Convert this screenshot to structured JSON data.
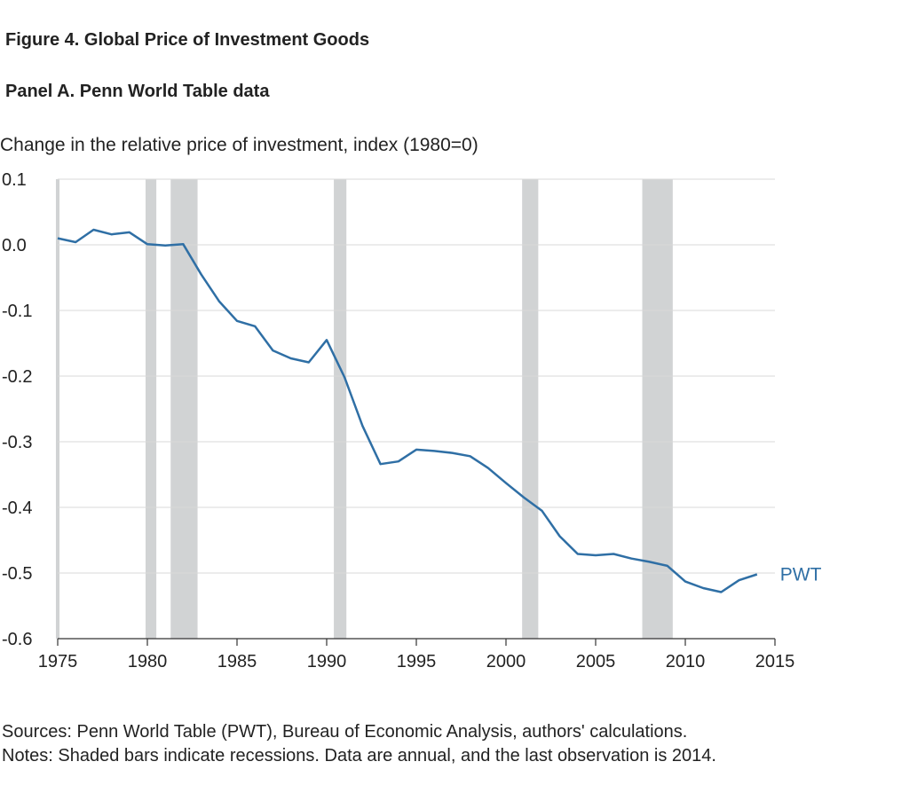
{
  "figure_title": "Figure 4. Global Price of Investment Goods",
  "panel_title": "Panel A. Penn World Table data",
  "notes": {
    "sources": "Sources: Penn World Table (PWT), Bureau of Economic Analysis, authors' calculations.",
    "notes": "Notes: Shaded bars indicate recessions. Data are annual, and the last observation is 2014."
  },
  "colors": {
    "line": "#2f6fa5",
    "recession": "#d1d3d4",
    "grid": "#d9d9d9",
    "axis": "#333333"
  },
  "chart_data": {
    "type": "line",
    "title": "Figure 4. Global Price of Investment Goods",
    "subtitle": "Panel A. Penn World Table data",
    "ylabel": "Change in the relative price of investment, index (1980=0)",
    "xlabel": "",
    "xlim": [
      1975,
      2015
    ],
    "ylim": [
      -0.6,
      0.1
    ],
    "xticks": [
      1975,
      1980,
      1985,
      1990,
      1995,
      2000,
      2005,
      2010,
      2015
    ],
    "yticks": [
      0.1,
      0.0,
      -0.1,
      -0.2,
      -0.3,
      -0.4,
      -0.5,
      -0.6
    ],
    "ytick_labels": [
      "0.1",
      "0.0",
      "-0.1",
      "-0.2",
      "-0.3",
      "-0.4",
      "-0.5",
      "-0.6"
    ],
    "grid": true,
    "series": [
      {
        "name": "PWT",
        "x": [
          1975,
          1976,
          1977,
          1978,
          1979,
          1980,
          1981,
          1982,
          1983,
          1984,
          1985,
          1986,
          1987,
          1988,
          1989,
          1990,
          1991,
          1992,
          1993,
          1994,
          1995,
          1996,
          1997,
          1998,
          1999,
          2000,
          2001,
          2002,
          2003,
          2004,
          2005,
          2006,
          2007,
          2008,
          2009,
          2010,
          2011,
          2012,
          2013,
          2014
        ],
        "y": [
          0.01,
          0.004,
          0.023,
          0.016,
          0.019,
          0.001,
          -0.001,
          0.001,
          -0.045,
          -0.086,
          -0.116,
          -0.124,
          -0.161,
          -0.173,
          -0.179,
          -0.145,
          -0.202,
          -0.276,
          -0.334,
          -0.33,
          -0.312,
          -0.314,
          -0.317,
          -0.322,
          -0.34,
          -0.363,
          -0.385,
          -0.405,
          -0.444,
          -0.471,
          -0.473,
          -0.471,
          -0.478,
          -0.483,
          -0.489,
          -0.513,
          -0.523,
          -0.529,
          -0.511,
          -0.502
        ]
      }
    ],
    "recessions": [
      [
        1974.9,
        1975.1
      ],
      [
        1979.9,
        1980.5
      ],
      [
        1981.3,
        1982.8
      ],
      [
        1990.4,
        1991.1
      ],
      [
        2000.9,
        2001.8
      ],
      [
        2007.6,
        2009.3
      ]
    ]
  }
}
